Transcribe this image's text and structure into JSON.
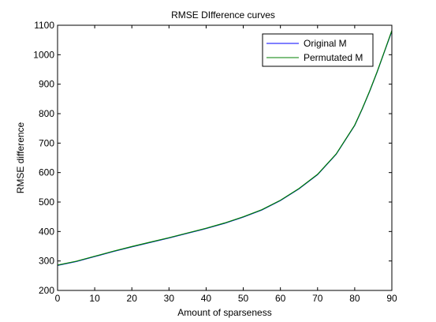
{
  "chart_data": {
    "type": "line",
    "title": "RMSE DIfference curves",
    "xlabel": "Amount of sparseness",
    "ylabel": "RMSE difference",
    "xlim": [
      0,
      90
    ],
    "ylim": [
      200,
      1100
    ],
    "xticks": [
      0,
      10,
      20,
      30,
      40,
      50,
      60,
      70,
      80,
      90
    ],
    "yticks": [
      200,
      300,
      400,
      500,
      600,
      700,
      800,
      900,
      1000,
      1100
    ],
    "grid": false,
    "legend_position": "top-right",
    "x": [
      0,
      5,
      10,
      15,
      20,
      25,
      30,
      35,
      40,
      45,
      50,
      55,
      60,
      65,
      70,
      75,
      80,
      82,
      84,
      86,
      88,
      90
    ],
    "series": [
      {
        "name": "Original M",
        "color": "#0000ff",
        "values": [
          285,
          298,
          315,
          332,
          348,
          363,
          378,
          394,
          410,
          428,
          449,
          473,
          505,
          545,
          593,
          662,
          760,
          815,
          875,
          940,
          1010,
          1080
        ]
      },
      {
        "name": "Permutated M",
        "color": "#008000",
        "values": [
          286,
          299,
          316,
          333,
          349,
          364,
          379,
          395,
          411,
          429,
          450,
          474,
          506,
          546,
          594,
          663,
          761,
          816,
          876,
          941,
          1011,
          1082
        ]
      }
    ]
  }
}
